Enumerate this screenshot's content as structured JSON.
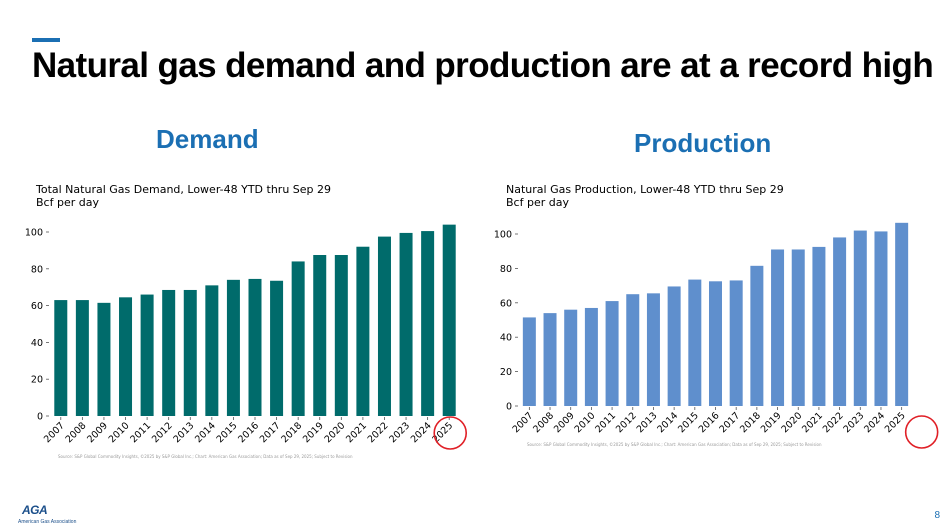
{
  "slide": {
    "title": "Natural gas demand and production are at a record high",
    "page_number": "8",
    "logo_text": "American Gas Association",
    "logo_mark": "AGA"
  },
  "sections": {
    "demand_heading": "Demand",
    "production_heading": "Production"
  },
  "chart_data": [
    {
      "id": "demand",
      "type": "bar",
      "title": "Total Natural Gas Demand, Lower-48 YTD thru Sep 29",
      "ylabel": "Bcf per day",
      "xlabel": "",
      "color": "#006b6b",
      "categories": [
        "2007",
        "2008",
        "2009",
        "2010",
        "2011",
        "2012",
        "2013",
        "2014",
        "2015",
        "2016",
        "2017",
        "2018",
        "2019",
        "2020",
        "2021",
        "2022",
        "2023",
        "2024",
        "2025"
      ],
      "values": [
        63,
        63,
        61.5,
        64.5,
        66,
        68.5,
        68.5,
        71,
        74,
        74.5,
        73.5,
        84,
        87.5,
        87.5,
        92,
        97.5,
        99.5,
        100.5,
        104
      ],
      "ylim": [
        0,
        105
      ],
      "yticks": [
        0,
        20,
        40,
        60,
        80,
        100
      ],
      "source": "Source: S&P Global Commodity Insights, ©2025 by S&P Global Inc.; Chart: American Gas Association; Data as of Sep 29, 2025; Subject to Revision",
      "highlight": "2025"
    },
    {
      "id": "production",
      "type": "bar",
      "title": "Natural Gas Production, Lower-48 YTD thru Sep 29",
      "ylabel": "Bcf per day",
      "xlabel": "",
      "color": "#5f8fcd",
      "categories": [
        "2007",
        "2008",
        "2009",
        "2010",
        "2011",
        "2012",
        "2013",
        "2014",
        "2015",
        "2016",
        "2017",
        "2018",
        "2019",
        "2020",
        "2021",
        "2022",
        "2023",
        "2024",
        "2025"
      ],
      "values": [
        51.5,
        54,
        56,
        57,
        61,
        65,
        65.5,
        69.5,
        73.5,
        72.5,
        73,
        81.5,
        91,
        91,
        92.5,
        98,
        102,
        101.5,
        106.5
      ],
      "ylim": [
        0,
        110
      ],
      "yticks": [
        0,
        20,
        40,
        60,
        80,
        100
      ],
      "source": "Source: S&P Global Commodity Insights, ©2025 by S&P Global Inc.; Chart: American Gas Association; Data as of Sep 29, 2025; Subject to Revision",
      "highlight": "2025"
    }
  ]
}
